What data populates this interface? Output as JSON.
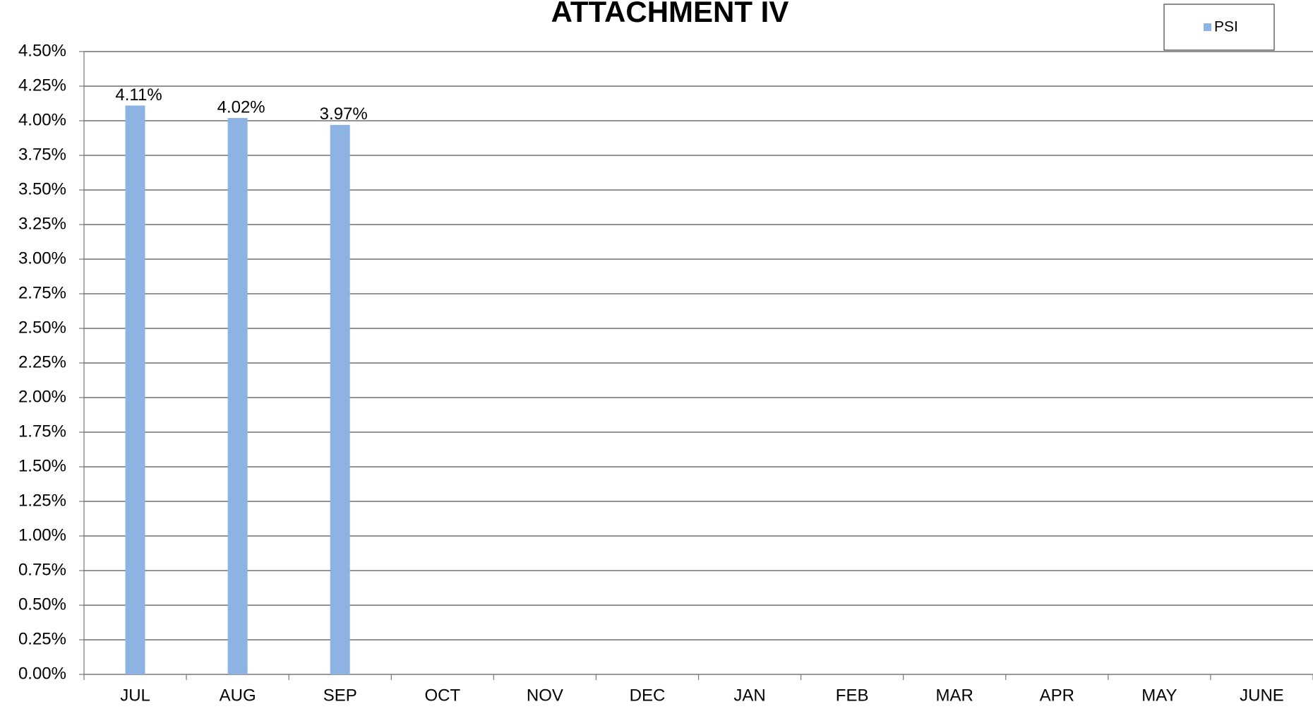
{
  "chart_data": {
    "type": "bar",
    "title": "ATTACHMENT IV",
    "categories": [
      "JUL",
      "AUG",
      "SEP",
      "OCT",
      "NOV",
      "DEC",
      "JAN",
      "FEB",
      "MAR",
      "APR",
      "MAY",
      "JUNE"
    ],
    "series": [
      {
        "name": "PSI",
        "color": "#8db3e2",
        "values": [
          4.11,
          4.02,
          3.97,
          null,
          null,
          null,
          null,
          null,
          null,
          null,
          null,
          null
        ],
        "value_labels": [
          "4.11%",
          "4.02%",
          "3.97%",
          null,
          null,
          null,
          null,
          null,
          null,
          null,
          null,
          null
        ]
      }
    ],
    "ylim": [
      0,
      4.5
    ],
    "yticks": [
      {
        "value": 0,
        "label": "0.00%"
      },
      {
        "value": 0.25,
        "label": "0.25%"
      },
      {
        "value": 0.5,
        "label": "0.50%"
      },
      {
        "value": 0.75,
        "label": "0.75%"
      },
      {
        "value": 1,
        "label": "1.00%"
      },
      {
        "value": 1.25,
        "label": "1.25%"
      },
      {
        "value": 1.5,
        "label": "1.50%"
      },
      {
        "value": 1.75,
        "label": "1.75%"
      },
      {
        "value": 2,
        "label": "2.00%"
      },
      {
        "value": 2.25,
        "label": "2.25%"
      },
      {
        "value": 2.5,
        "label": "2.50%"
      },
      {
        "value": 2.75,
        "label": "2.75%"
      },
      {
        "value": 3,
        "label": "3.00%"
      },
      {
        "value": 3.25,
        "label": "3.25%"
      },
      {
        "value": 3.5,
        "label": "3.50%"
      },
      {
        "value": 3.75,
        "label": "3.75%"
      },
      {
        "value": 4,
        "label": "4.00%"
      },
      {
        "value": 4.25,
        "label": "4.25%"
      },
      {
        "value": 4.5,
        "label": "4.50%"
      }
    ],
    "grid": true,
    "legend": "top-right"
  }
}
